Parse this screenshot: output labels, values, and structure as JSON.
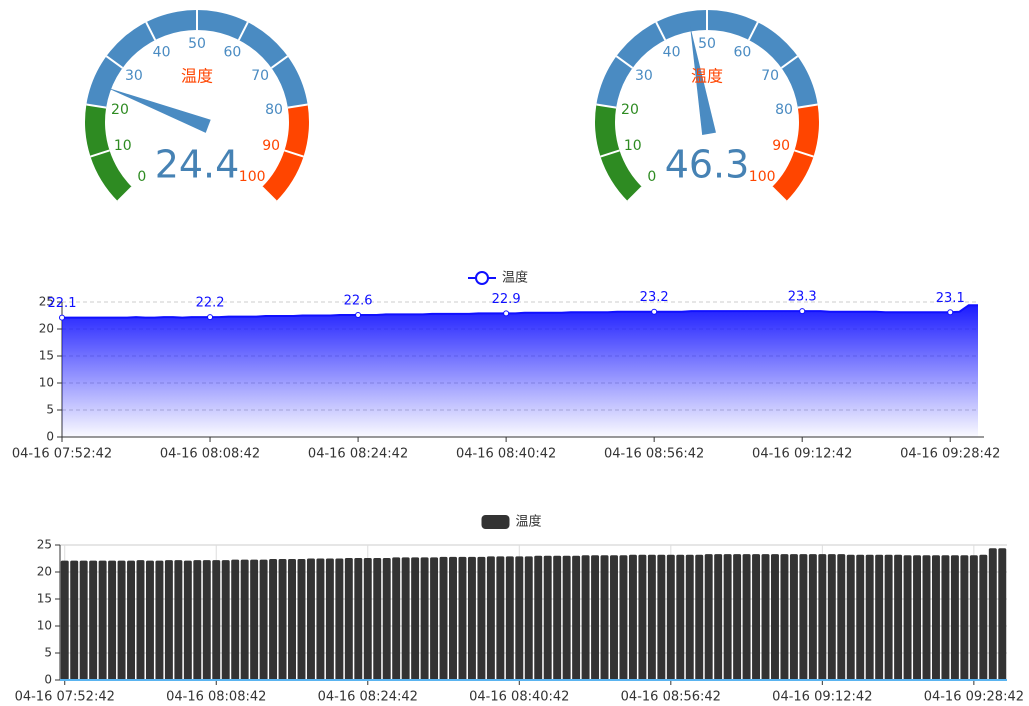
{
  "chart_data": [
    {
      "type": "gauge",
      "title": "温度",
      "value": 24.4,
      "range": [
        0,
        100
      ],
      "ticks": [
        0,
        10,
        20,
        30,
        40,
        50,
        60,
        70,
        80,
        90,
        100
      ],
      "bands": [
        {
          "to": 20,
          "color": "#2e8b22"
        },
        {
          "to": 80,
          "color": "#4a8bc2"
        },
        {
          "to": 100,
          "color": "#ff4500"
        }
      ],
      "pointer_color": "#4a8bc2",
      "value_color": "#4682b4",
      "title_color": "#ff4500"
    },
    {
      "type": "gauge",
      "title": "温度",
      "value": 46.3,
      "range": [
        0,
        100
      ],
      "ticks": [
        0,
        10,
        20,
        30,
        40,
        50,
        60,
        70,
        80,
        90,
        100
      ],
      "bands": [
        {
          "to": 20,
          "color": "#2e8b22"
        },
        {
          "to": 80,
          "color": "#4a8bc2"
        },
        {
          "to": 100,
          "color": "#ff4500"
        }
      ],
      "pointer_color": "#4a8bc2",
      "value_color": "#4682b4",
      "title_color": "#ff4500"
    },
    {
      "type": "line",
      "area": true,
      "grid": true,
      "legend": "top",
      "categories": [
        "04-16 07:52:42",
        null,
        null,
        null,
        null,
        null,
        null,
        null,
        null,
        null,
        null,
        null,
        null,
        null,
        null,
        null,
        "04-16 08:08:42",
        null,
        null,
        null,
        null,
        null,
        null,
        null,
        null,
        null,
        null,
        null,
        null,
        null,
        null,
        null,
        "04-16 08:24:42",
        null,
        null,
        null,
        null,
        null,
        null,
        null,
        null,
        null,
        null,
        null,
        null,
        null,
        null,
        null,
        "04-16 08:40:42",
        null,
        null,
        null,
        null,
        null,
        null,
        null,
        null,
        null,
        null,
        null,
        null,
        null,
        null,
        null,
        "04-16 08:56:42",
        null,
        null,
        null,
        null,
        null,
        null,
        null,
        null,
        null,
        null,
        null,
        null,
        null,
        null,
        null,
        "04-16 09:12:42",
        null,
        null,
        null,
        null,
        null,
        null,
        null,
        null,
        null,
        null,
        null,
        null,
        null,
        null,
        null,
        "04-16 09:28:42",
        null,
        null,
        null
      ],
      "series": [
        {
          "name": "温度",
          "color": "#1010ff",
          "values": [
            22.1,
            22.1,
            22.1,
            22.1,
            22.1,
            22.1,
            22.1,
            22.1,
            22.2,
            22.1,
            22.1,
            22.2,
            22.2,
            22.1,
            22.2,
            22.2,
            22.2,
            22.2,
            22.3,
            22.3,
            22.3,
            22.3,
            22.4,
            22.4,
            22.4,
            22.4,
            22.5,
            22.5,
            22.5,
            22.5,
            22.6,
            22.6,
            22.6,
            22.6,
            22.6,
            22.7,
            22.7,
            22.7,
            22.7,
            22.7,
            22.8,
            22.8,
            22.8,
            22.8,
            22.8,
            22.9,
            22.9,
            22.9,
            22.9,
            22.9,
            23.0,
            23.0,
            23.0,
            23.0,
            23.0,
            23.1,
            23.1,
            23.1,
            23.1,
            23.1,
            23.2,
            23.2,
            23.2,
            23.2,
            23.2,
            23.2,
            23.2,
            23.2,
            23.3,
            23.3,
            23.3,
            23.3,
            23.3,
            23.3,
            23.3,
            23.3,
            23.3,
            23.3,
            23.3,
            23.3,
            23.3,
            23.3,
            23.3,
            23.2,
            23.2,
            23.2,
            23.2,
            23.2,
            23.2,
            23.1,
            23.1,
            23.1,
            23.1,
            23.1,
            23.1,
            23.1,
            23.1,
            23.2,
            24.4,
            24.4
          ]
        }
      ],
      "ylim": [
        0,
        25
      ],
      "yticks": [
        0,
        5,
        10,
        15,
        20,
        25
      ]
    },
    {
      "type": "bar",
      "grid": true,
      "legend": "top",
      "categories": [
        "04-16 07:52:42",
        null,
        null,
        null,
        null,
        null,
        null,
        null,
        null,
        null,
        null,
        null,
        null,
        null,
        null,
        null,
        "04-16 08:08:42",
        null,
        null,
        null,
        null,
        null,
        null,
        null,
        null,
        null,
        null,
        null,
        null,
        null,
        null,
        null,
        "04-16 08:24:42",
        null,
        null,
        null,
        null,
        null,
        null,
        null,
        null,
        null,
        null,
        null,
        null,
        null,
        null,
        null,
        "04-16 08:40:42",
        null,
        null,
        null,
        null,
        null,
        null,
        null,
        null,
        null,
        null,
        null,
        null,
        null,
        null,
        null,
        "04-16 08:56:42",
        null,
        null,
        null,
        null,
        null,
        null,
        null,
        null,
        null,
        null,
        null,
        null,
        null,
        null,
        null,
        "04-16 09:12:42",
        null,
        null,
        null,
        null,
        null,
        null,
        null,
        null,
        null,
        null,
        null,
        null,
        null,
        null,
        null,
        "04-16 09:28:42",
        null,
        null,
        null
      ],
      "series": [
        {
          "name": "温度",
          "color": "#333333",
          "values": [
            22.1,
            22.1,
            22.1,
            22.1,
            22.1,
            22.1,
            22.1,
            22.1,
            22.2,
            22.1,
            22.1,
            22.2,
            22.2,
            22.1,
            22.2,
            22.2,
            22.2,
            22.2,
            22.3,
            22.3,
            22.3,
            22.3,
            22.4,
            22.4,
            22.4,
            22.4,
            22.5,
            22.5,
            22.5,
            22.5,
            22.6,
            22.6,
            22.6,
            22.6,
            22.6,
            22.7,
            22.7,
            22.7,
            22.7,
            22.7,
            22.8,
            22.8,
            22.8,
            22.8,
            22.8,
            22.9,
            22.9,
            22.9,
            22.9,
            22.9,
            23.0,
            23.0,
            23.0,
            23.0,
            23.0,
            23.1,
            23.1,
            23.1,
            23.1,
            23.1,
            23.2,
            23.2,
            23.2,
            23.2,
            23.2,
            23.2,
            23.2,
            23.2,
            23.3,
            23.3,
            23.3,
            23.3,
            23.3,
            23.3,
            23.3,
            23.3,
            23.3,
            23.3,
            23.3,
            23.3,
            23.3,
            23.3,
            23.3,
            23.2,
            23.2,
            23.2,
            23.2,
            23.2,
            23.2,
            23.1,
            23.1,
            23.1,
            23.1,
            23.1,
            23.1,
            23.1,
            23.1,
            23.2,
            24.4,
            24.4
          ]
        }
      ],
      "ylim": [
        0,
        25
      ],
      "yticks": [
        0,
        5,
        10,
        15,
        20,
        25
      ]
    }
  ]
}
